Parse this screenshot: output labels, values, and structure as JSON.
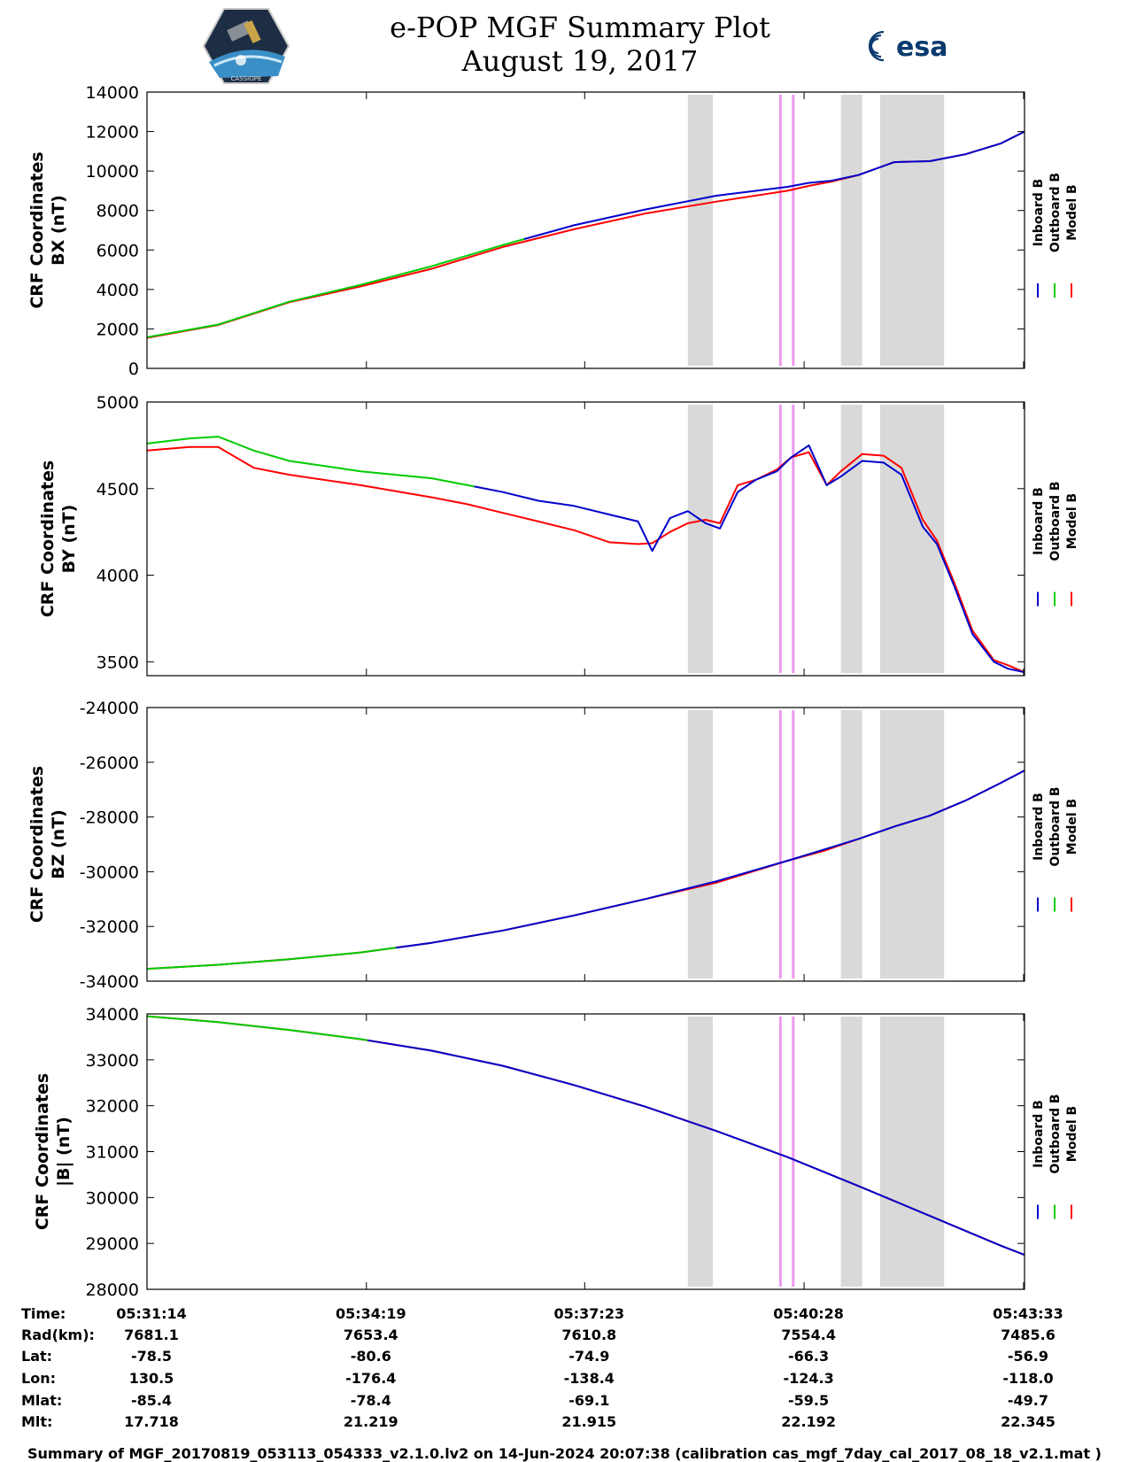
{
  "header": {
    "title_line1": "e-POP MGF Summary Plot",
    "title_line2": "August 19, 2017",
    "logo_left_name": "CASSIOPE mission patch",
    "logo_left_text": "CASSIOPE",
    "logo_right_text": "esa"
  },
  "chart_data": [
    {
      "type": "line",
      "ylabel_line1": "CRF Coordinates",
      "ylabel_line2": "BX (nT)",
      "ylim": [
        0,
        14000
      ],
      "yticks": [
        "0",
        "2000",
        "4000",
        "6000",
        "8000",
        "10000",
        "12000",
        "14000"
      ],
      "x_minutes": [
        0,
        1,
        2,
        3,
        4,
        5,
        6,
        7,
        8,
        9,
        9.3,
        9.6,
        10,
        10.5,
        11,
        11.5,
        12,
        12.33
      ],
      "series": [
        {
          "name": "Inboard B",
          "color": "#0000cc",
          "x_range": [
            5.3,
            12.33
          ],
          "values": [
            1550,
            2200,
            3350,
            4200,
            5150,
            6250,
            7250,
            8050,
            8750,
            9200,
            9400,
            9500,
            9800,
            10450,
            10500,
            10850,
            11400,
            12000
          ]
        },
        {
          "name": "Outboard B",
          "color": "#00cc00",
          "x_range": [
            0,
            5.3
          ],
          "values": [
            1580,
            2220,
            3380,
            4230,
            5180,
            6250,
            7250,
            8050,
            8750,
            9200,
            9400,
            9500,
            9800,
            10450,
            10500,
            10850,
            11400,
            12000
          ]
        },
        {
          "name": "Model B",
          "color": "#ff0000",
          "x_range": [
            0,
            12.33
          ],
          "values": [
            1550,
            2200,
            3350,
            4150,
            5050,
            6150,
            7050,
            7850,
            8450,
            9000,
            9250,
            9450,
            9800,
            10450,
            10500,
            10850,
            11400,
            12000
          ]
        }
      ]
    },
    {
      "type": "line",
      "ylabel_line1": "CRF Coordinates",
      "ylabel_line2": "BY (nT)",
      "ylim": [
        3420,
        5000
      ],
      "yticks": [
        "3500",
        "4000",
        "4500",
        "5000"
      ],
      "x_minutes": [
        0,
        0.6,
        1,
        1.5,
        2,
        3,
        4,
        4.5,
        5,
        5.5,
        6,
        6.5,
        6.9,
        7.1,
        7.35,
        7.6,
        7.85,
        8.05,
        8.3,
        8.55,
        8.85,
        9.05,
        9.3,
        9.55,
        9.75,
        10.05,
        10.35,
        10.6,
        10.9,
        11.1,
        11.35,
        11.6,
        11.9,
        12.1,
        12.33
      ],
      "series": [
        {
          "name": "Inboard B",
          "color": "#0000cc",
          "x_range": [
            4.6,
            12.33
          ],
          "values": [
            4760,
            4790,
            4800,
            4720,
            4660,
            4600,
            4560,
            4520,
            4480,
            4430,
            4400,
            4350,
            4310,
            4140,
            4330,
            4370,
            4300,
            4270,
            4480,
            4550,
            4600,
            4680,
            4750,
            4520,
            4570,
            4660,
            4650,
            4580,
            4280,
            4180,
            3930,
            3660,
            3500,
            3460,
            3440
          ]
        },
        {
          "name": "Outboard B",
          "color": "#00cc00",
          "x_range": [
            0,
            4.6
          ],
          "values": [
            4760,
            4790,
            4800,
            4720,
            4660,
            4600,
            4560,
            4520,
            4480,
            4430,
            4400,
            4350,
            4310,
            4140,
            4330,
            4370,
            4300,
            4270,
            4480,
            4550,
            4600,
            4680,
            4750,
            4520,
            4570,
            4660,
            4650,
            4580,
            4280,
            4180,
            3930,
            3660,
            3500,
            3460,
            3440
          ]
        },
        {
          "name": "Model B",
          "color": "#ff0000",
          "x_range": [
            0,
            12.33
          ],
          "values": [
            4720,
            4740,
            4740,
            4620,
            4580,
            4520,
            4450,
            4410,
            4360,
            4310,
            4260,
            4190,
            4180,
            4185,
            4250,
            4300,
            4320,
            4300,
            4520,
            4550,
            4610,
            4680,
            4710,
            4520,
            4600,
            4700,
            4690,
            4620,
            4320,
            4200,
            3950,
            3680,
            3510,
            3480,
            3440
          ]
        }
      ]
    },
    {
      "type": "line",
      "ylabel_line1": "CRF Coordinates",
      "ylabel_line2": "BZ (nT)",
      "ylim": [
        -34000,
        -24000
      ],
      "yticks": [
        "-34000",
        "-32000",
        "-30000",
        "-28000",
        "-26000",
        "-24000"
      ],
      "x_minutes": [
        0,
        1,
        2,
        3,
        4,
        5,
        6,
        7,
        8,
        9,
        9.5,
        10,
        10.5,
        11,
        11.5,
        12,
        12.33
      ],
      "series": [
        {
          "name": "Inboard B",
          "color": "#0000cc",
          "x_range": [
            3.5,
            12.33
          ],
          "values": [
            -33550,
            -33400,
            -33200,
            -32950,
            -32600,
            -32150,
            -31600,
            -31000,
            -30350,
            -29600,
            -29200,
            -28800,
            -28350,
            -27950,
            -27400,
            -26750,
            -26300
          ]
        },
        {
          "name": "Outboard B",
          "color": "#00cc00",
          "x_range": [
            0,
            3.5
          ],
          "values": [
            -33550,
            -33400,
            -33200,
            -32950,
            -32600,
            -32150,
            -31600,
            -31000,
            -30350,
            -29600,
            -29200,
            -28800,
            -28350,
            -27950,
            -27400,
            -26750,
            -26300
          ]
        },
        {
          "name": "Model B",
          "color": "#ff0000",
          "x_range": [
            0,
            12.33
          ],
          "values": [
            -33550,
            -33400,
            -33200,
            -32950,
            -32600,
            -32150,
            -31600,
            -31000,
            -30400,
            -29600,
            -29250,
            -28800,
            -28350,
            -27950,
            -27400,
            -26750,
            -26300
          ]
        }
      ]
    },
    {
      "type": "line",
      "ylabel_line1": "CRF Coordinates",
      "ylabel_line2": "|B| (nT)",
      "ylim": [
        28000,
        34000
      ],
      "yticks": [
        "28000",
        "29000",
        "30000",
        "31000",
        "32000",
        "33000",
        "34000"
      ],
      "x_minutes": [
        0,
        1,
        2,
        3,
        4,
        5,
        6,
        7,
        8,
        9,
        10,
        11,
        12,
        12.33
      ],
      "series": [
        {
          "name": "Inboard B",
          "color": "#0000cc",
          "x_range": [
            3.1,
            12.33
          ],
          "values": [
            33950,
            33820,
            33650,
            33450,
            33200,
            32870,
            32450,
            31980,
            31450,
            30880,
            30250,
            29600,
            28950,
            28750
          ]
        },
        {
          "name": "Outboard B",
          "color": "#00cc00",
          "x_range": [
            0,
            3.1
          ],
          "values": [
            33950,
            33820,
            33650,
            33450,
            33200,
            32870,
            32450,
            31980,
            31450,
            30880,
            30250,
            29600,
            28950,
            28750
          ]
        },
        {
          "name": "Model B",
          "color": "#ff0000",
          "x_range": [
            0,
            12.33
          ],
          "values": [
            33950,
            33820,
            33650,
            33450,
            33200,
            32870,
            32450,
            31980,
            31450,
            30880,
            30250,
            29600,
            28950,
            28750
          ]
        }
      ]
    }
  ],
  "x_axis": {
    "range_minutes": [
      0,
      12.33
    ],
    "tick_minutes": [
      0,
      3.083,
      6.15,
      9.233,
      12.317
    ]
  },
  "shaded_regions": {
    "gray_minutes": [
      [
        7.6,
        7.95
      ],
      [
        9.75,
        10.05
      ],
      [
        10.3,
        11.2
      ]
    ],
    "violet_lines_minutes": [
      8.9,
      9.08
    ],
    "gray_color": "#d9d9d9",
    "violet_color": "#ee99ee"
  },
  "legend": [
    "Inboard B",
    "Outboard B",
    "Model B"
  ],
  "orbit_info": {
    "labels": [
      "Time:",
      "Rad(km):",
      "Lat:",
      "Lon:",
      "Mlat:",
      "Mlt:"
    ],
    "columns": [
      [
        "05:31:14",
        "7681.1",
        "-78.5",
        "130.5",
        "-85.4",
        "17.718"
      ],
      [
        "05:34:19",
        "7653.4",
        "-80.6",
        "-176.4",
        "-78.4",
        "21.219"
      ],
      [
        "05:37:23",
        "7610.8",
        "-74.9",
        "-138.4",
        "-69.1",
        "21.915"
      ],
      [
        "05:40:28",
        "7554.4",
        "-66.3",
        "-124.3",
        "-59.5",
        "22.192"
      ],
      [
        "05:43:33",
        "7485.6",
        "-56.9",
        "-118.0",
        "-49.7",
        "22.345"
      ]
    ]
  },
  "footer": {
    "text": "Summary of MGF_20170819_053113_054333_v2.1.0.lv2 on 14-Jun-2024 20:07:38 (calibration cas_mgf_7day_cal_2017_08_18_v2.1.mat )"
  }
}
